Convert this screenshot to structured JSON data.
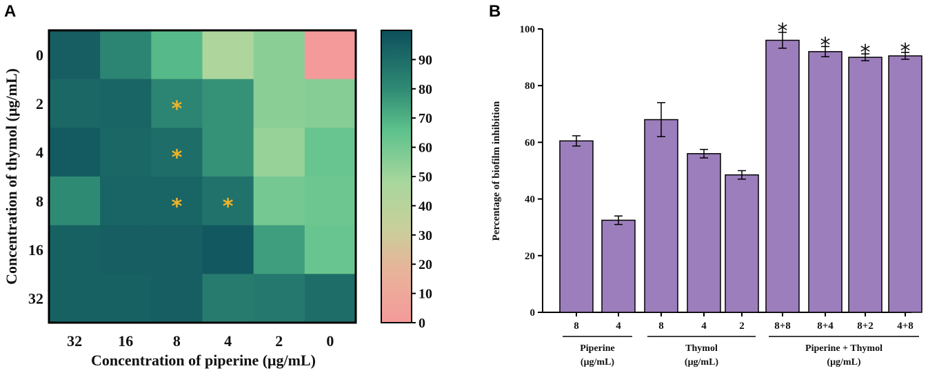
{
  "panel_a_label": "A",
  "panel_b_label": "B",
  "chart_data": [
    {
      "type": "heatmap",
      "xlabel": "Concentration of piperine (μg/mL)",
      "ylabel": "Concentration of thymol (μg/mL)",
      "x_categories": [
        "32",
        "16",
        "8",
        "4",
        "2",
        "0"
      ],
      "y_categories": [
        "0",
        "2",
        "4",
        "8",
        "16",
        "32"
      ],
      "values": [
        [
          95,
          82,
          68,
          45,
          55,
          0
        ],
        [
          92,
          93,
          82,
          78,
          55,
          56
        ],
        [
          96,
          92,
          90,
          78,
          52,
          63
        ],
        [
          80,
          93,
          93,
          88,
          60,
          62
        ],
        [
          94,
          95,
          95,
          97,
          75,
          63
        ],
        [
          94,
          94,
          95,
          85,
          86,
          90
        ]
      ],
      "significance_marker": "*",
      "significant_cells": [
        [
          1,
          2
        ],
        [
          2,
          2
        ],
        [
          3,
          2
        ],
        [
          3,
          3
        ]
      ],
      "colorbar": {
        "range": [
          0,
          100
        ],
        "ticks": [
          "0",
          "10",
          "20",
          "30",
          "40",
          "50",
          "60",
          "70",
          "80",
          "90"
        ],
        "low_color": "#f49a9a",
        "mid_color": "#a8d79d",
        "high_color": "#0d4f5c"
      }
    },
    {
      "type": "bar",
      "ylabel": "Percentage of biofilm inhibition",
      "ylim": [
        0,
        100
      ],
      "yticks": [
        "0",
        "20",
        "40",
        "60",
        "80",
        "100"
      ],
      "categories": [
        "8",
        "4",
        "8",
        "4",
        "2",
        "8+8",
        "8+4",
        "8+2",
        "4+8"
      ],
      "values": [
        60.5,
        32.5,
        68,
        56,
        48.5,
        96,
        92,
        90,
        90.5
      ],
      "errors": [
        1.8,
        1.5,
        6,
        1.5,
        1.5,
        2.8,
        1.8,
        1.2,
        1.2
      ],
      "significance_marker": "*",
      "significant": [
        false,
        false,
        false,
        false,
        false,
        true,
        true,
        true,
        true
      ],
      "groups": [
        {
          "name": "Piperine",
          "unit": "(μg/mL)",
          "start": 0,
          "end": 1
        },
        {
          "name": "Thymol",
          "unit": "(μg/mL)",
          "start": 2,
          "end": 4
        },
        {
          "name": "Piperine + Thymol",
          "unit": "(μg/mL)",
          "start": 5,
          "end": 8
        }
      ],
      "bar_color": "#9c7ebc"
    }
  ]
}
